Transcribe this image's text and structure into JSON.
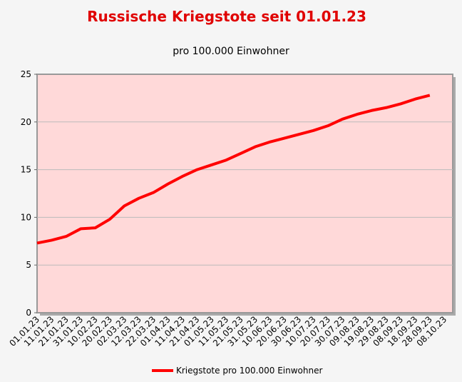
{
  "chart_data": {
    "type": "line",
    "title": "Russische Kriegstote seit 01.01.23",
    "subtitle": "pro 100.000 Einwohner",
    "categories": [
      "01.01.23",
      "11.01.23",
      "21.01.23",
      "31.01.23",
      "10.02.23",
      "20.02.23",
      "02.03.23",
      "12.03.23",
      "22.03.23",
      "01.04.23",
      "11.04.23",
      "21.04.23",
      "01.05.23",
      "11.05.23",
      "21.05.23",
      "31.05.23",
      "10.06.23",
      "20.06.23",
      "30.06.23",
      "10.07.23",
      "20.07.23",
      "30.07.23",
      "09.08.23",
      "19.08.23",
      "29.08.23",
      "08.09.23",
      "18.09.23",
      "28.09.23",
      "08.10.23"
    ],
    "series": [
      {
        "name": "Kriegstote pro 100.000 Einwohner",
        "color": "#ff0000",
        "values": [
          7.3,
          7.6,
          8.0,
          8.8,
          8.9,
          9.8,
          11.2,
          12.0,
          12.6,
          13.5,
          14.3,
          15.0,
          15.5,
          16.0,
          16.7,
          17.4,
          17.9,
          18.3,
          18.7,
          19.1,
          19.6,
          20.3,
          20.8,
          21.2,
          21.5,
          21.9,
          22.4,
          22.8,
          null
        ]
      }
    ],
    "ylim": [
      0,
      25
    ],
    "yticks": [
      0,
      5,
      10,
      15,
      20,
      25
    ],
    "grid": true,
    "legend": "bottom"
  }
}
